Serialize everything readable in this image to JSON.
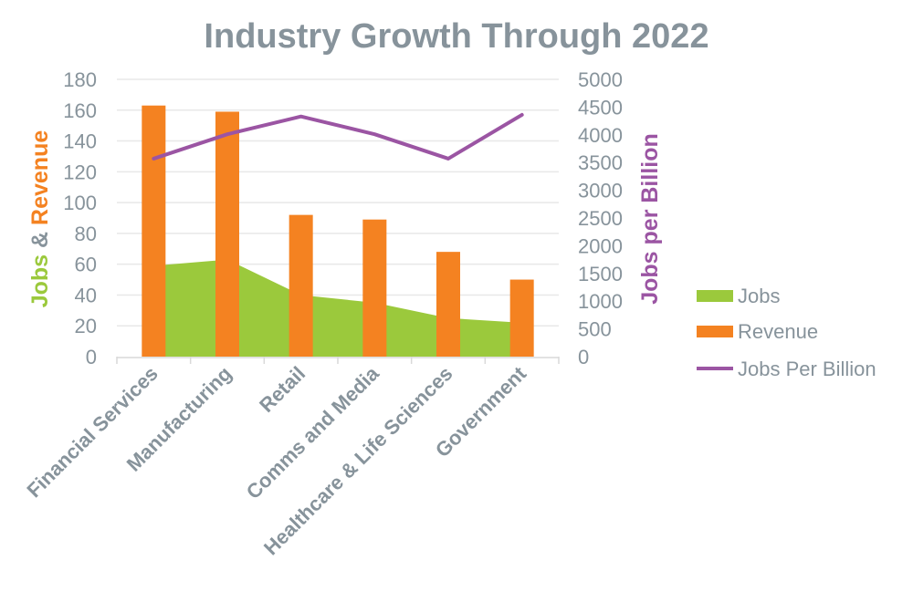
{
  "chart_data": {
    "type": "bar",
    "title": "Industry Growth Through 2022",
    "categories": [
      "Financial Services",
      "Manufacturing",
      "Retail",
      "Comms and Media",
      "Healthcare & Life Sciences",
      "Government"
    ],
    "ylabel_parts": [
      "Jobs",
      " & ",
      "Revenue"
    ],
    "y2label": "Jobs per Billion",
    "ylim": [
      0,
      180
    ],
    "yticks": [
      0,
      20,
      40,
      60,
      80,
      100,
      120,
      140,
      160,
      180
    ],
    "y2lim": [
      0,
      5000
    ],
    "y2ticks": [
      0,
      500,
      1000,
      1500,
      2000,
      2500,
      3000,
      3500,
      4000,
      4500,
      5000
    ],
    "grid": true,
    "legend_position": "right",
    "series": [
      {
        "name": "Jobs",
        "type": "area",
        "axis": "left",
        "color": "#9bc93c",
        "values": [
          59,
          63,
          40,
          35,
          25,
          22
        ]
      },
      {
        "name": "Revenue",
        "type": "bar",
        "axis": "left",
        "color": "#f48221",
        "values": [
          163,
          159,
          92,
          89,
          68,
          50
        ]
      },
      {
        "name": "Jobs Per Billion",
        "type": "line",
        "axis": "right",
        "color": "#9b55a3",
        "values": [
          3570,
          4010,
          4330,
          4010,
          3570,
          4360
        ]
      }
    ],
    "colors": {
      "text": "#87939b",
      "grid": "#e8e8e8"
    }
  }
}
